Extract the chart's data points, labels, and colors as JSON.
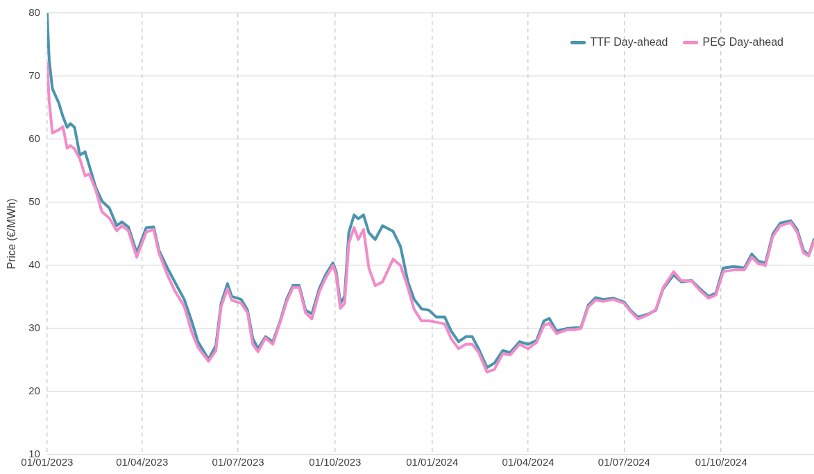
{
  "chart_data": {
    "type": "line",
    "ylabel": "Price (€/MWh)",
    "x": [
      "2023-01-01",
      "2023-01-03",
      "2023-01-06",
      "2023-01-12",
      "2023-01-16",
      "2023-01-20",
      "2023-01-23",
      "2023-01-27",
      "2023-02-01",
      "2023-02-06",
      "2023-02-10",
      "2023-02-16",
      "2023-02-22",
      "2023-03-01",
      "2023-03-08",
      "2023-03-13",
      "2023-03-19",
      "2023-03-27",
      "2023-04-05",
      "2023-04-12",
      "2023-04-17",
      "2023-04-25",
      "2023-05-02",
      "2023-05-11",
      "2023-05-18",
      "2023-05-24",
      "2023-06-03",
      "2023-06-10",
      "2023-06-15",
      "2023-06-21",
      "2023-06-25",
      "2023-07-04",
      "2023-07-10",
      "2023-07-15",
      "2023-07-20",
      "2023-07-27",
      "2023-08-03",
      "2023-08-10",
      "2023-08-16",
      "2023-08-22",
      "2023-08-28",
      "2023-09-03",
      "2023-09-09",
      "2023-09-16",
      "2023-09-22",
      "2023-09-29",
      "2023-10-02",
      "2023-10-06",
      "2023-10-10",
      "2023-10-14",
      "2023-10-19",
      "2023-10-23",
      "2023-10-28",
      "2023-11-02",
      "2023-11-08",
      "2023-11-15",
      "2023-11-25",
      "2023-12-02",
      "2023-12-09",
      "2023-12-15",
      "2023-12-22",
      "2023-12-29",
      "2024-01-05",
      "2024-01-13",
      "2024-01-19",
      "2024-01-26",
      "2024-02-02",
      "2024-02-08",
      "2024-02-14",
      "2024-02-22",
      "2024-02-29",
      "2024-03-08",
      "2024-03-15",
      "2024-03-24",
      "2024-04-01",
      "2024-04-09",
      "2024-04-16",
      "2024-04-21",
      "2024-04-28",
      "2024-05-08",
      "2024-05-15",
      "2024-05-21",
      "2024-05-28",
      "2024-06-04",
      "2024-06-11",
      "2024-06-21",
      "2024-07-01",
      "2024-07-07",
      "2024-07-14",
      "2024-07-24",
      "2024-07-31",
      "2024-08-07",
      "2024-08-17",
      "2024-08-24",
      "2024-09-03",
      "2024-09-11",
      "2024-09-19",
      "2024-09-26",
      "2024-10-03",
      "2024-10-13",
      "2024-10-23",
      "2024-10-30",
      "2024-11-05",
      "2024-11-12",
      "2024-11-19",
      "2024-11-26",
      "2024-12-06",
      "2024-12-12",
      "2024-12-18",
      "2024-12-23",
      "2024-12-28"
    ],
    "series": [
      {
        "name": "TTF Day-ahead",
        "color": "#4a95ad",
        "values": [
          80,
          72.5,
          68,
          65.8,
          63.6,
          61.9,
          62.5,
          61.9,
          57.5,
          58,
          55.8,
          52.4,
          50.2,
          49.1,
          46.3,
          46.9,
          46.1,
          42,
          46,
          46.1,
          42.4,
          39.6,
          37.4,
          34.6,
          31.2,
          27.9,
          25.1,
          27.3,
          34,
          37.1,
          35.1,
          34.6,
          32.9,
          28.4,
          26.8,
          28.7,
          27.9,
          31.2,
          34.6,
          36.8,
          36.8,
          32.9,
          32.3,
          36.3,
          38.5,
          40.4,
          39,
          34,
          35.1,
          45.2,
          48,
          47.4,
          48,
          45.2,
          44.1,
          46.3,
          45.4,
          43,
          37.4,
          34.6,
          33.1,
          32.9,
          31.8,
          31.8,
          29.6,
          27.9,
          28.7,
          28.7,
          26.8,
          23.8,
          24.5,
          26.5,
          26.2,
          27.9,
          27.5,
          28.1,
          31.2,
          31.6,
          29.6,
          30,
          30.1,
          30.1,
          33.7,
          34.9,
          34.6,
          34.8,
          34.2,
          32.9,
          31.8,
          32.3,
          32.9,
          36.3,
          38.5,
          37.4,
          37.6,
          36.3,
          35.1,
          35.6,
          39.6,
          39.8,
          39.6,
          41.8,
          40.7,
          40.4,
          45,
          46.7,
          47.1,
          45.7,
          42.4,
          41.6,
          44.1
        ]
      },
      {
        "name": "PEG Day-ahead",
        "color": "#f28cc8",
        "values": [
          72,
          66,
          61,
          61.5,
          62,
          58.6,
          59,
          58.5,
          56.9,
          54.2,
          54.5,
          52,
          48.5,
          47.5,
          45.5,
          46.3,
          45.5,
          41.3,
          45.3,
          45.7,
          42,
          38.5,
          36,
          33.5,
          29.5,
          27,
          24.8,
          26.5,
          33.5,
          36.3,
          34.5,
          34,
          32.5,
          27.5,
          26.3,
          28.5,
          27.5,
          31,
          34.2,
          36.5,
          36.5,
          32.5,
          31.5,
          35.8,
          38,
          40,
          38.5,
          33.2,
          34,
          43.5,
          46,
          44.1,
          45.7,
          39.6,
          36.8,
          37.4,
          41,
          40,
          36.5,
          33,
          31.2,
          31.2,
          31,
          30.7,
          28.4,
          26.8,
          27.5,
          27.5,
          26.2,
          23.1,
          23.5,
          26,
          25.8,
          27.5,
          26.8,
          27.8,
          30.5,
          30.8,
          29.2,
          29.8,
          29.8,
          30,
          33.4,
          34.5,
          34.3,
          34.6,
          34,
          32.7,
          31.5,
          32.2,
          33,
          36.5,
          39,
          37.6,
          37.5,
          36,
          34.8,
          35.3,
          39,
          39.3,
          39.3,
          41.3,
          40.3,
          40,
          44.6,
          46.3,
          46.8,
          45.3,
          42,
          41.5,
          43.8
        ]
      }
    ],
    "xlim": [
      "2023-01-01",
      "2024-12-28"
    ],
    "xticks": [
      {
        "value": "2023-01-01",
        "label": "01/01/2023"
      },
      {
        "value": "2023-04-01",
        "label": "01/04/2023"
      },
      {
        "value": "2023-07-01",
        "label": "01/07/2023"
      },
      {
        "value": "2023-10-01",
        "label": "01/10/2023"
      },
      {
        "value": "2024-01-01",
        "label": "01/01/2024"
      },
      {
        "value": "2024-04-01",
        "label": "01/04/2024"
      },
      {
        "value": "2024-07-01",
        "label": "01/07/2024"
      },
      {
        "value": "2024-10-01",
        "label": "01/10/2024"
      }
    ],
    "ylim": [
      10,
      80
    ],
    "yticks": [
      10,
      20,
      30,
      40,
      50,
      60,
      70,
      80
    ],
    "grid": true,
    "legend": "top right",
    "marker": "none",
    "line_style": "solid"
  }
}
